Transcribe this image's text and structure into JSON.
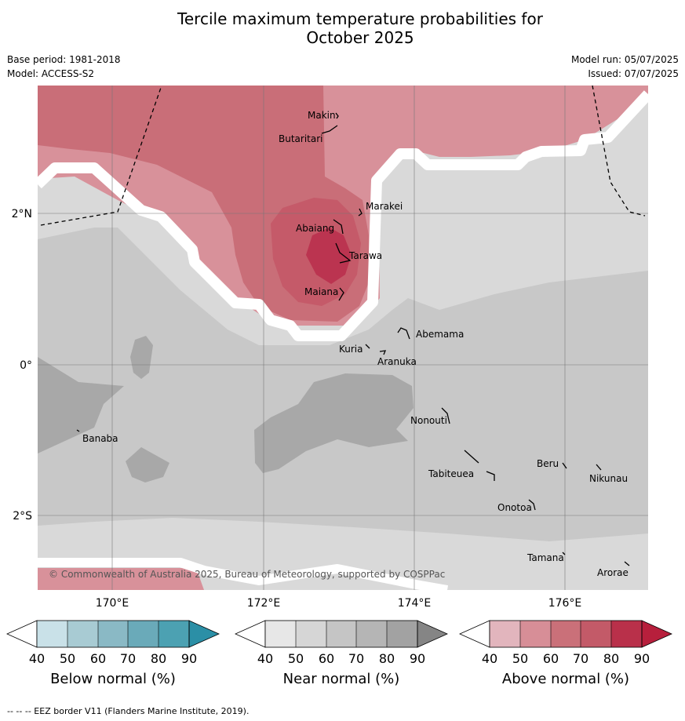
{
  "header": {
    "title_line1": "Tercile maximum temperature probabilities for",
    "title_line2": "October 2025",
    "base_period": "Base period: 1981-2018",
    "model": "Model: ACCESS-S2",
    "model_run": "Model run: 05/07/2025",
    "issued": "Issued: 07/07/2025"
  },
  "map": {
    "lon_ticks": [
      "170°E",
      "172°E",
      "174°E",
      "176°E"
    ],
    "lat_ticks": [
      "2°N",
      "0°",
      "2°S"
    ],
    "islands": [
      "Makin",
      "Butaritari",
      "Marakei",
      "Abaiang",
      "Tarawa",
      "Maiana",
      "Abemama",
      "Kuria",
      "Aranuka",
      "Banaba",
      "Nonouti",
      "Beru",
      "Tabiteuea",
      "Nikunau",
      "Onotoa",
      "Tamana",
      "Arorae"
    ],
    "copyright": "© Commonwealth of Australia 2025, Bureau of Meteorology, supported by COSPPac"
  },
  "colorbars": [
    {
      "label": "Below normal (%)",
      "ticks": [
        "40",
        "50",
        "60",
        "70",
        "80",
        "90"
      ],
      "colors": [
        "#ffffff",
        "#c9e1e8",
        "#a8cbd3",
        "#8ab9c5",
        "#6aaab9",
        "#4ca1b2",
        "#2b8fa6"
      ]
    },
    {
      "label": "Near normal (%)",
      "ticks": [
        "40",
        "50",
        "60",
        "70",
        "80",
        "90"
      ],
      "colors": [
        "#ffffff",
        "#e7e7e7",
        "#d6d6d6",
        "#c5c5c5",
        "#b5b5b5",
        "#a2a2a2",
        "#858585"
      ]
    },
    {
      "label": "Above normal (%)",
      "ticks": [
        "40",
        "50",
        "60",
        "70",
        "80",
        "90"
      ],
      "colors": [
        "#ffffff",
        "#e2b5bd",
        "#d78e97",
        "#ca7079",
        "#c35a68",
        "#b9304a",
        "#b71f3c"
      ]
    }
  ],
  "footnote": "--  --  -- EEZ border V11 (Flanders Marine Institute, 2019)."
}
